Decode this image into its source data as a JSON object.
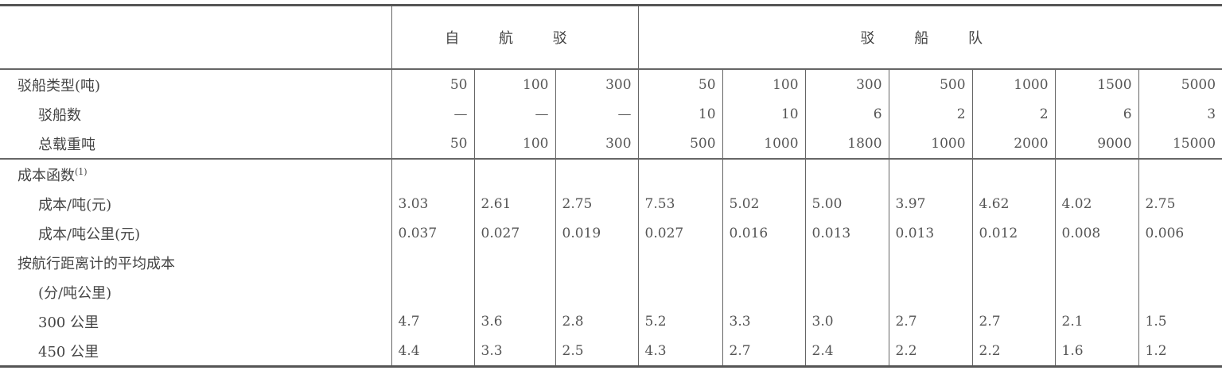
{
  "header": {
    "group_self_propelled": "自 航 驳",
    "group_barge_fleet": "驳 船 队"
  },
  "rows": [
    {
      "label": "驳船类型(吨)",
      "indent": false,
      "align": "right",
      "values": [
        "50",
        "100",
        "300",
        "50",
        "100",
        "300",
        "500",
        "1000",
        "1500",
        "5000"
      ]
    },
    {
      "label": "驳船数",
      "indent": true,
      "align": "right",
      "values": [
        "—",
        "—",
        "—",
        "10",
        "10",
        "6",
        "2",
        "2",
        "6",
        "3"
      ]
    },
    {
      "label": "总载重吨",
      "indent": true,
      "align": "right",
      "sep": true,
      "values": [
        "50",
        "100",
        "300",
        "500",
        "1000",
        "1800",
        "1000",
        "2000",
        "9000",
        "15000"
      ]
    },
    {
      "label": "成本函数",
      "sup": "(1)",
      "indent": false,
      "align": "left",
      "values": [
        "",
        "",
        "",
        "",
        "",
        "",
        "",
        "",
        "",
        ""
      ]
    },
    {
      "label": "成本/吨(元)",
      "indent": true,
      "align": "left",
      "values": [
        "3.03",
        "2.61",
        "2.75",
        "7.53",
        "5.02",
        "5.00",
        "3.97",
        "4.62",
        "4.02",
        "2.75"
      ]
    },
    {
      "label": "成本/吨公里(元)",
      "indent": true,
      "align": "left",
      "values": [
        "0.037",
        "0.027",
        "0.019",
        "0.027",
        "0.016",
        "0.013",
        "0.013",
        "0.012",
        "0.008",
        "0.006"
      ]
    },
    {
      "label": "按航行距离计的平均成本",
      "indent": false,
      "align": "left",
      "values": [
        "",
        "",
        "",
        "",
        "",
        "",
        "",
        "",
        "",
        ""
      ]
    },
    {
      "label": "(分/吨公里)",
      "indent": true,
      "align": "left",
      "values": [
        "",
        "",
        "",
        "",
        "",
        "",
        "",
        "",
        "",
        ""
      ]
    },
    {
      "label": "300 公里",
      "indent": true,
      "align": "left",
      "values": [
        "4.7",
        "3.6",
        "2.8",
        "5.2",
        "3.3",
        "3.0",
        "2.7",
        "2.7",
        "2.1",
        "1.5"
      ]
    },
    {
      "label": "450 公里",
      "indent": true,
      "align": "left",
      "last": true,
      "values": [
        "4.4",
        "3.3",
        "2.5",
        "4.3",
        "2.7",
        "2.4",
        "2.2",
        "2.2",
        "1.6",
        "1.2"
      ]
    }
  ]
}
